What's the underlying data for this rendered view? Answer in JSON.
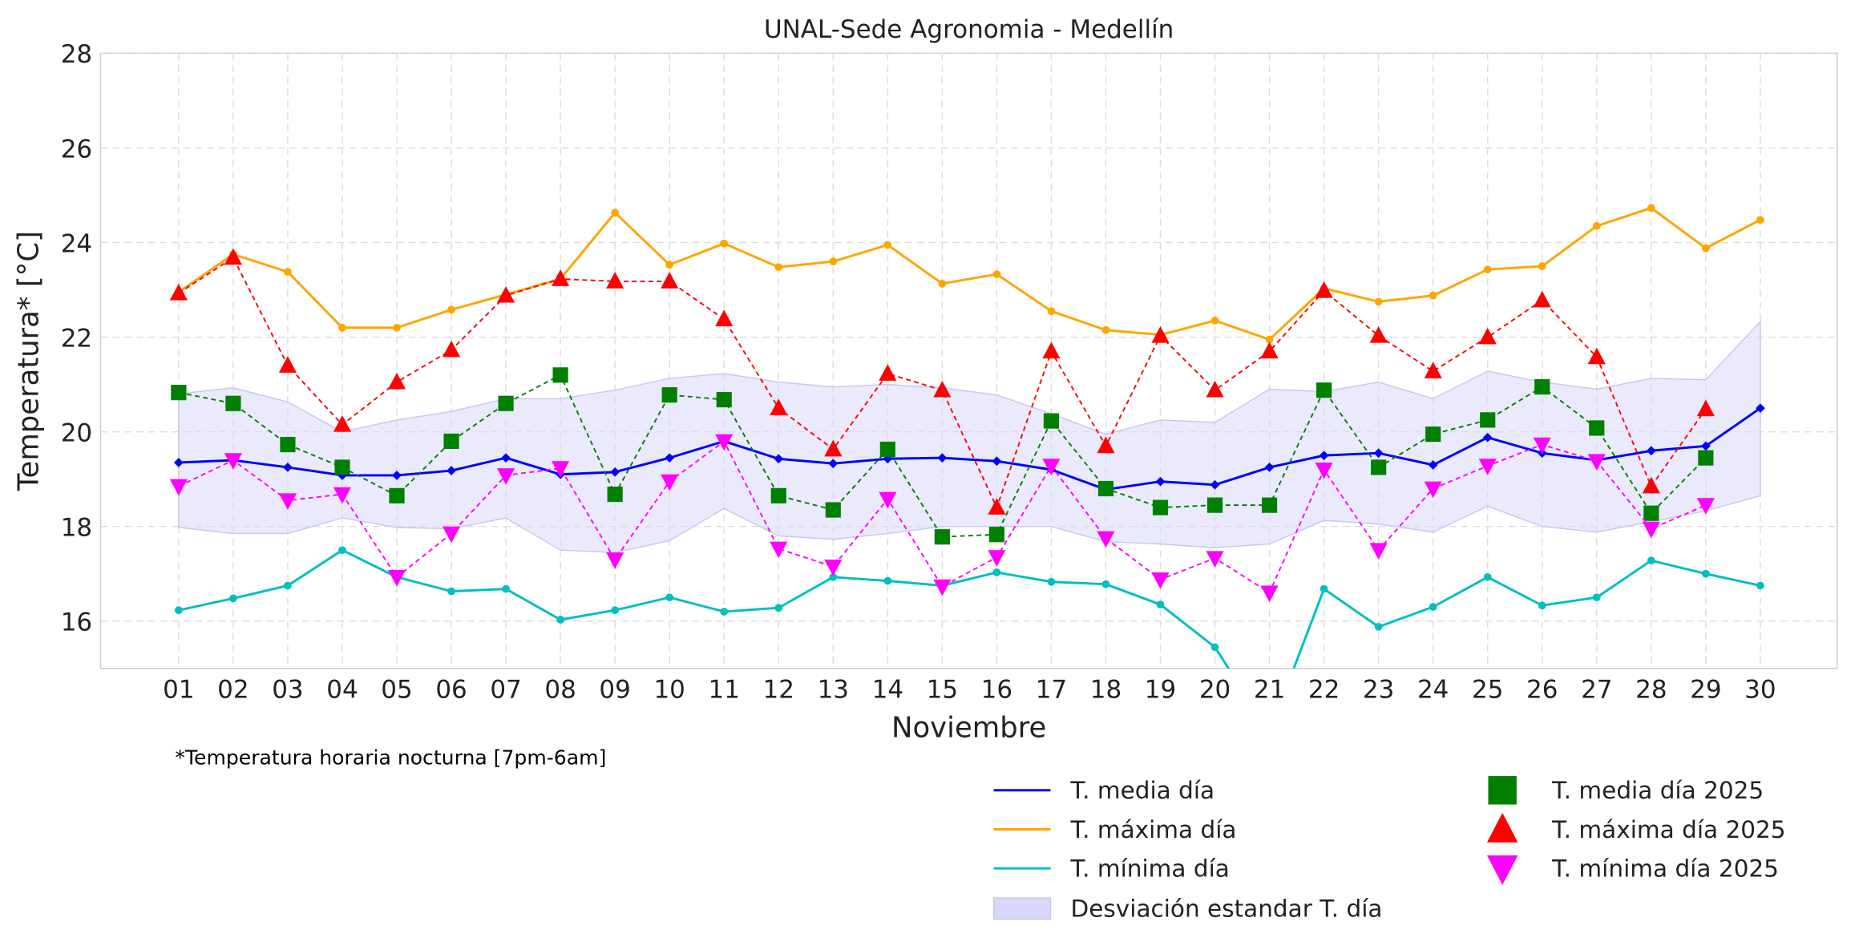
{
  "chart_data": {
    "type": "line",
    "title": "UNAL-Sede Agronomia - Medellín",
    "xlabel": "Noviembre",
    "ylabel": "Temperatura* [°C]",
    "note": "*Temperatura horaria nocturna [7pm-6am]",
    "ylim": [
      15,
      28
    ],
    "yticks": [
      16,
      18,
      20,
      22,
      24,
      26,
      28
    ],
    "grid": true,
    "legend_placement": "bottom-right, outside",
    "x": [
      "01",
      "02",
      "03",
      "04",
      "05",
      "06",
      "07",
      "08",
      "09",
      "10",
      "11",
      "12",
      "13",
      "14",
      "15",
      "16",
      "17",
      "18",
      "19",
      "20",
      "21",
      "22",
      "23",
      "24",
      "25",
      "26",
      "27",
      "28",
      "29",
      "30"
    ],
    "band": {
      "name": "Desviación estandar T. día",
      "color": "#d8d8fa",
      "upper": [
        20.8,
        20.93,
        20.63,
        20.0,
        20.25,
        20.43,
        20.7,
        20.7,
        20.88,
        21.13,
        21.23,
        21.05,
        20.95,
        21.0,
        20.93,
        20.78,
        20.38,
        19.95,
        20.25,
        20.2,
        20.9,
        20.85,
        21.05,
        20.7,
        21.28,
        21.05,
        20.9,
        21.13,
        21.1,
        22.33
      ],
      "lower": [
        17.98,
        17.85,
        17.85,
        18.18,
        17.98,
        17.95,
        18.18,
        17.5,
        17.45,
        17.7,
        18.38,
        17.8,
        17.73,
        17.85,
        18.0,
        18.0,
        18.0,
        17.68,
        17.63,
        17.55,
        17.63,
        18.13,
        18.05,
        17.88,
        18.43,
        18.0,
        17.88,
        18.1,
        18.33,
        18.65
      ]
    },
    "series": [
      {
        "name": "T. media día",
        "color": "#0000ff",
        "style": "line",
        "values": [
          19.35,
          19.4,
          19.25,
          19.08,
          19.08,
          19.18,
          19.45,
          19.1,
          19.15,
          19.45,
          19.8,
          19.43,
          19.33,
          19.43,
          19.45,
          19.38,
          19.2,
          18.78,
          18.95,
          18.88,
          19.25,
          19.5,
          19.55,
          19.3,
          19.88,
          19.55,
          19.4,
          19.6,
          19.7,
          20.5
        ]
      },
      {
        "name": "T. máxima día",
        "color": "#ffa500",
        "style": "line",
        "values": [
          22.95,
          23.75,
          23.38,
          22.2,
          22.2,
          22.58,
          22.9,
          23.23,
          24.63,
          23.53,
          23.98,
          23.48,
          23.6,
          23.95,
          23.13,
          23.33,
          22.55,
          22.15,
          22.05,
          22.35,
          21.95,
          23.03,
          22.75,
          22.88,
          23.43,
          23.5,
          24.35,
          24.73,
          23.88,
          24.48
        ]
      },
      {
        "name": "T. mínima día",
        "color": "#00bfbf",
        "style": "line",
        "values": [
          16.23,
          16.48,
          16.75,
          17.5,
          16.93,
          16.63,
          16.68,
          16.03,
          16.23,
          16.5,
          16.2,
          16.28,
          16.93,
          16.85,
          16.75,
          17.03,
          16.83,
          16.78,
          16.35,
          15.45,
          13.65,
          16.68,
          15.88,
          16.3,
          16.93,
          16.33,
          16.5,
          17.28,
          17.0,
          16.75
        ]
      },
      {
        "name": "T. media día 2025",
        "color": "#008000",
        "style": "square",
        "values": [
          20.83,
          20.6,
          19.73,
          19.25,
          18.65,
          19.8,
          20.6,
          21.2,
          18.68,
          20.78,
          20.68,
          18.65,
          18.35,
          19.63,
          17.78,
          17.83,
          20.23,
          18.8,
          18.4,
          18.45,
          18.45,
          20.88,
          19.25,
          19.95,
          20.25,
          20.95,
          20.08,
          18.28,
          19.45,
          null
        ]
      },
      {
        "name": "T. máxima día 2025",
        "color": "#ff0000",
        "style": "triangle-up",
        "values": [
          22.93,
          23.68,
          21.4,
          20.15,
          21.05,
          21.73,
          22.88,
          23.23,
          23.18,
          23.18,
          22.38,
          20.5,
          19.63,
          21.23,
          20.88,
          18.4,
          21.7,
          19.7,
          22.03,
          20.88,
          21.7,
          22.98,
          22.03,
          21.28,
          22.0,
          22.78,
          21.58,
          18.85,
          20.48,
          null
        ]
      },
      {
        "name": "T. mínima día 2025",
        "color": "#ff00ff",
        "style": "triangle-down",
        "values": [
          18.85,
          19.4,
          18.55,
          18.68,
          16.93,
          17.85,
          19.08,
          19.23,
          17.3,
          18.95,
          19.8,
          17.53,
          17.15,
          18.58,
          16.73,
          17.35,
          19.28,
          17.75,
          16.88,
          17.33,
          16.6,
          19.2,
          17.5,
          18.8,
          19.28,
          19.73,
          19.38,
          17.95,
          18.45,
          null
        ]
      }
    ]
  }
}
